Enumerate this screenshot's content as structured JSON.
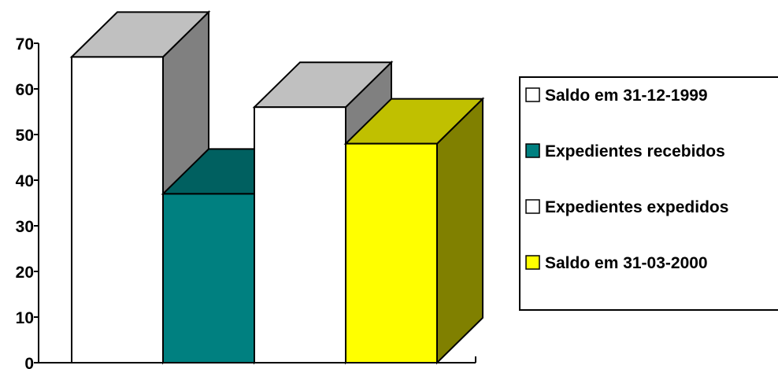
{
  "chart_data": {
    "type": "bar",
    "style": "3d",
    "title": "",
    "xlabel": "",
    "ylabel": "",
    "ylim": [
      0,
      70
    ],
    "yticks": [
      0,
      10,
      20,
      30,
      40,
      50,
      60,
      70
    ],
    "grid": false,
    "legend_position": "right",
    "series": [
      {
        "name": "Saldo em 31-12-1999",
        "values": [
          67
        ],
        "color": "#ffffff",
        "top_color": "#c0c0c0",
        "side_color": "#808080"
      },
      {
        "name": "Expedientes recebidos",
        "values": [
          37
        ],
        "color": "#008080",
        "top_color": "#006060",
        "side_color": "#005a5a"
      },
      {
        "name": "Expedientes expedidos",
        "values": [
          56
        ],
        "color": "#ffffff",
        "top_color": "#c0c0c0",
        "side_color": "#808080"
      },
      {
        "name": "Saldo em 31-03-2000",
        "values": [
          48
        ],
        "color": "#ffff00",
        "top_color": "#c0c000",
        "side_color": "#808000"
      }
    ]
  }
}
